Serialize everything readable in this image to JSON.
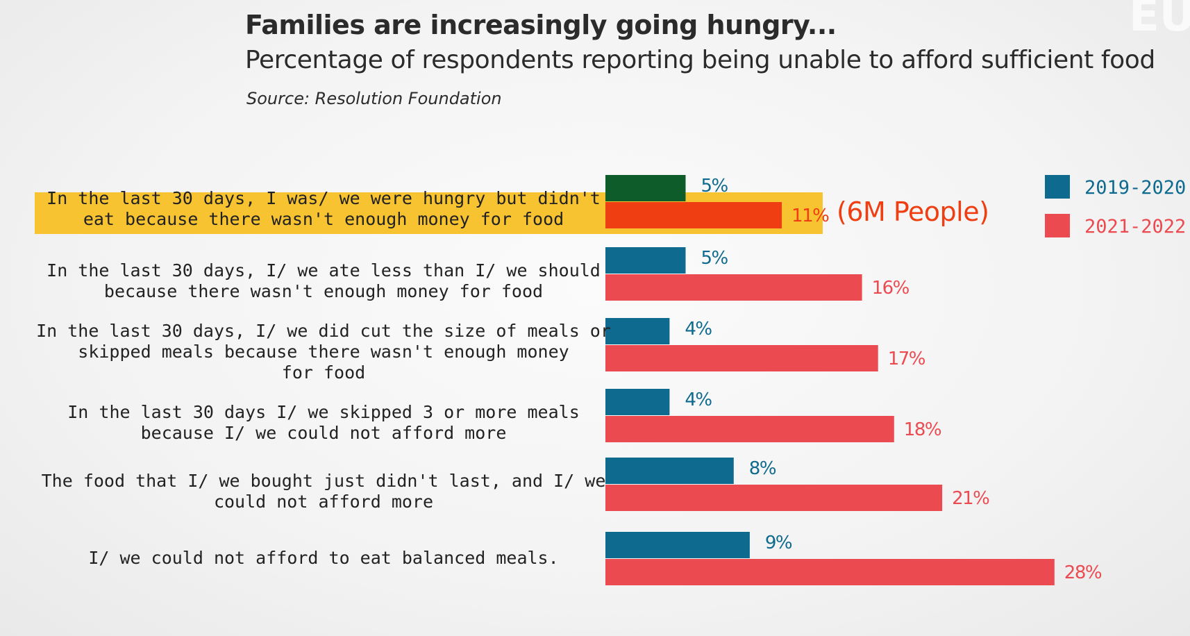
{
  "header": {
    "title": "Families are increasingly going hungry...",
    "subtitle": "Percentage of respondents reporting being unable to afford sufficient food",
    "source": "Source: Resolution Foundation",
    "watermark": "EU"
  },
  "chart_data": {
    "type": "bar",
    "orientation": "horizontal",
    "title": "Families are increasingly going hungry...",
    "subtitle": "Percentage of respondents reporting being unable to afford sufficient food",
    "categories": [
      [
        "In the last 30 days, I was/ we were hungry but didn't",
        "eat because there wasn't enough money for food"
      ],
      [
        "In the last 30 days, I/ we ate less than I/ we should",
        "because there wasn't enough money for food"
      ],
      [
        "In the last 30 days, I/ we did cut the size of meals or",
        "skipped meals because there wasn't enough money",
        "for food"
      ],
      [
        "In the last 30 days I/ we skipped 3 or more meals",
        "because I/ we could not afford more"
      ],
      [
        "The food that I/ we bought just didn't last, and I/ we",
        "could not afford more"
      ],
      [
        "I/ we could not afford to eat balanced meals."
      ]
    ],
    "series": [
      {
        "name": "2019-2020",
        "color": "#0e6a8f",
        "values": [
          5,
          5,
          4,
          4,
          8,
          9
        ],
        "labels": [
          "5%",
          "5%",
          "4%",
          "4%",
          "8%",
          "9%"
        ]
      },
      {
        "name": "2021-2022",
        "color": "#eb4b50",
        "values": [
          11,
          16,
          17,
          18,
          21,
          28
        ],
        "labels": [
          "11%",
          "16%",
          "17%",
          "18%",
          "21%",
          "28%"
        ]
      }
    ],
    "highlight": {
      "category_index": 0,
      "color": "#f7c331",
      "bar_colors": [
        "#0d5c2a",
        "#ee3e12"
      ],
      "label_color": "#ee3e12",
      "annotation": "(6M People)"
    },
    "legend_position": "top-right",
    "grid": false
  }
}
